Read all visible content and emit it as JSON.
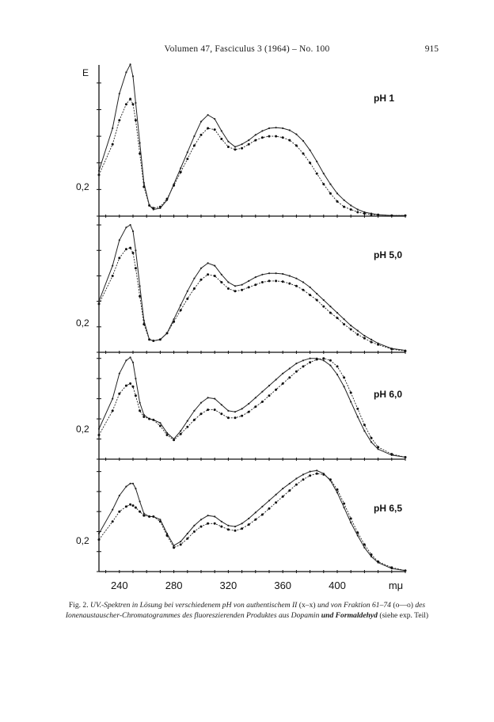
{
  "header": {
    "running_title": "Volumen 47, Fasciculus 3 (1964) – No. 100",
    "page_number": "915"
  },
  "caption": {
    "label": "Fig. 2.",
    "text_1": "UV.-Spektren in Lösung bei verschiedenem pH von authentischem II",
    "text_2": "(x–x)",
    "text_3": "und von Fraktion 61–74",
    "text_4": "(o—o)",
    "text_5": "des Ionenaustauscher-Chromatogrammes des fluoreszierenden Produktes aus Dopamin",
    "text_6": "und Formaldehyd",
    "text_7": "(siehe exp. Teil)"
  },
  "chart_data": {
    "type": "line",
    "y_axis_label": "E",
    "x_unit_label": "mμ",
    "x_tick_labels": [
      "240",
      "280",
      "320",
      "360",
      "400"
    ],
    "xlim": [
      225,
      450
    ],
    "panel_y_tick_label": "0,2",
    "panels": [
      {
        "label": "pH 1",
        "ylim": [
          0,
          1.1
        ],
        "series": [
          {
            "marker": "x",
            "x": [
              225,
              235,
              240,
              245,
              248,
              250,
              252,
              255,
              258,
              262,
              265,
              270,
              275,
              280,
              285,
              290,
              295,
              300,
              305,
              310,
              315,
              320,
              325,
              330,
              335,
              340,
              345,
              350,
              355,
              360,
              365,
              370,
              375,
              380,
              385,
              390,
              395,
              400,
              405,
              410,
              415,
              420,
              425,
              430,
              440,
              450
            ],
            "y": [
              0.34,
              0.66,
              0.92,
              1.08,
              1.14,
              1.05,
              0.85,
              0.55,
              0.25,
              0.08,
              0.05,
              0.06,
              0.12,
              0.24,
              0.36,
              0.48,
              0.6,
              0.71,
              0.76,
              0.73,
              0.64,
              0.56,
              0.52,
              0.54,
              0.57,
              0.61,
              0.64,
              0.66,
              0.665,
              0.66,
              0.645,
              0.615,
              0.565,
              0.495,
              0.41,
              0.32,
              0.24,
              0.17,
              0.12,
              0.08,
              0.05,
              0.03,
              0.02,
              0.01,
              0.005,
              0.005
            ]
          },
          {
            "marker": "o",
            "x": [
              225,
              235,
              240,
              245,
              248,
              250,
              252,
              255,
              258,
              262,
              265,
              270,
              275,
              280,
              285,
              290,
              295,
              300,
              305,
              310,
              315,
              320,
              325,
              330,
              335,
              340,
              345,
              350,
              355,
              360,
              365,
              370,
              375,
              380,
              385,
              390,
              395,
              400,
              405,
              410,
              415,
              420,
              425,
              430,
              440,
              450
            ],
            "y": [
              0.31,
              0.54,
              0.72,
              0.84,
              0.88,
              0.84,
              0.72,
              0.47,
              0.22,
              0.08,
              0.06,
              0.07,
              0.13,
              0.23,
              0.33,
              0.43,
              0.53,
              0.61,
              0.66,
              0.65,
              0.58,
              0.52,
              0.5,
              0.51,
              0.54,
              0.57,
              0.59,
              0.6,
              0.6,
              0.59,
              0.57,
              0.53,
              0.47,
              0.4,
              0.32,
              0.24,
              0.17,
              0.11,
              0.07,
              0.05,
              0.03,
              0.02,
              0.01,
              0.01,
              0.005,
              0.005
            ]
          }
        ]
      },
      {
        "label": "pH 5,0",
        "ylim": [
          0,
          1.1
        ],
        "series": [
          {
            "marker": "x",
            "x": [
              225,
              235,
              240,
              245,
              248,
              250,
              252,
              255,
              258,
              262,
              265,
              270,
              275,
              280,
              285,
              290,
              295,
              300,
              305,
              310,
              315,
              320,
              325,
              330,
              335,
              340,
              345,
              350,
              355,
              360,
              365,
              370,
              375,
              380,
              385,
              390,
              395,
              400,
              405,
              410,
              415,
              420,
              425,
              430,
              440,
              450
            ],
            "y": [
              0.4,
              0.68,
              0.88,
              0.98,
              1.0,
              0.95,
              0.8,
              0.52,
              0.25,
              0.1,
              0.09,
              0.1,
              0.15,
              0.26,
              0.37,
              0.48,
              0.58,
              0.66,
              0.7,
              0.68,
              0.61,
              0.55,
              0.52,
              0.53,
              0.56,
              0.59,
              0.61,
              0.62,
              0.62,
              0.615,
              0.6,
              0.58,
              0.55,
              0.51,
              0.46,
              0.41,
              0.36,
              0.31,
              0.26,
              0.21,
              0.17,
              0.13,
              0.1,
              0.07,
              0.03,
              0.015
            ]
          },
          {
            "marker": "o",
            "x": [
              225,
              235,
              240,
              245,
              248,
              250,
              252,
              255,
              258,
              262,
              265,
              270,
              275,
              280,
              285,
              290,
              295,
              300,
              305,
              310,
              315,
              320,
              325,
              330,
              335,
              340,
              345,
              350,
              355,
              360,
              365,
              370,
              375,
              380,
              385,
              390,
              395,
              400,
              405,
              410,
              415,
              420,
              425,
              430,
              440,
              450
            ],
            "y": [
              0.38,
              0.6,
              0.74,
              0.81,
              0.82,
              0.78,
              0.66,
              0.44,
              0.22,
              0.1,
              0.09,
              0.1,
              0.15,
              0.24,
              0.33,
              0.42,
              0.5,
              0.57,
              0.61,
              0.6,
              0.55,
              0.5,
              0.48,
              0.49,
              0.51,
              0.53,
              0.55,
              0.56,
              0.56,
              0.555,
              0.54,
              0.52,
              0.49,
              0.45,
              0.41,
              0.36,
              0.31,
              0.27,
              0.22,
              0.18,
              0.14,
              0.11,
              0.08,
              0.06,
              0.025,
              0.01
            ]
          }
        ]
      },
      {
        "label": "pH 6,0",
        "ylim": [
          0,
          1.1
        ],
        "series": [
          {
            "marker": "x",
            "x": [
              225,
              235,
              240,
              245,
              248,
              250,
              252,
              255,
              258,
              262,
              265,
              270,
              275,
              280,
              285,
              290,
              295,
              300,
              305,
              310,
              315,
              320,
              325,
              330,
              335,
              340,
              345,
              350,
              355,
              360,
              365,
              370,
              375,
              380,
              385,
              390,
              395,
              400,
              405,
              410,
              415,
              420,
              425,
              430,
              440,
              450
            ],
            "y": [
              0.3,
              0.6,
              0.85,
              0.98,
              1.01,
              0.96,
              0.8,
              0.56,
              0.44,
              0.4,
              0.39,
              0.36,
              0.26,
              0.2,
              0.28,
              0.38,
              0.48,
              0.56,
              0.61,
              0.6,
              0.54,
              0.48,
              0.47,
              0.5,
              0.55,
              0.61,
              0.67,
              0.73,
              0.79,
              0.85,
              0.9,
              0.95,
              0.98,
              1.0,
              1.0,
              0.98,
              0.93,
              0.84,
              0.72,
              0.57,
              0.42,
              0.28,
              0.17,
              0.1,
              0.04,
              0.02
            ]
          },
          {
            "marker": "o",
            "x": [
              225,
              235,
              240,
              245,
              248,
              250,
              252,
              255,
              258,
              262,
              265,
              270,
              275,
              280,
              285,
              290,
              295,
              300,
              305,
              310,
              315,
              320,
              325,
              330,
              335,
              340,
              345,
              350,
              355,
              360,
              365,
              370,
              375,
              380,
              385,
              390,
              395,
              400,
              405,
              410,
              415,
              420,
              425,
              430,
              440,
              450
            ],
            "y": [
              0.24,
              0.48,
              0.65,
              0.73,
              0.75,
              0.72,
              0.63,
              0.48,
              0.42,
              0.4,
              0.39,
              0.33,
              0.24,
              0.19,
              0.25,
              0.32,
              0.39,
              0.45,
              0.49,
              0.49,
              0.45,
              0.41,
              0.41,
              0.43,
              0.47,
              0.52,
              0.57,
              0.63,
              0.69,
              0.75,
              0.81,
              0.87,
              0.92,
              0.96,
              0.99,
              1.0,
              0.98,
              0.92,
              0.81,
              0.66,
              0.5,
              0.34,
              0.21,
              0.12,
              0.05,
              0.02
            ]
          }
        ]
      },
      {
        "label": "pH 6,5",
        "ylim": [
          0,
          1.1
        ],
        "series": [
          {
            "marker": "x",
            "x": [
              225,
              235,
              240,
              245,
              248,
              250,
              252,
              255,
              258,
              262,
              265,
              270,
              275,
              280,
              285,
              290,
              295,
              300,
              305,
              310,
              315,
              320,
              325,
              330,
              335,
              340,
              345,
              350,
              355,
              360,
              365,
              370,
              375,
              380,
              385,
              390,
              395,
              400,
              405,
              410,
              415,
              420,
              425,
              430,
              440,
              450
            ],
            "y": [
              0.38,
              0.62,
              0.76,
              0.85,
              0.88,
              0.88,
              0.83,
              0.7,
              0.58,
              0.55,
              0.55,
              0.52,
              0.38,
              0.26,
              0.3,
              0.38,
              0.46,
              0.52,
              0.56,
              0.55,
              0.5,
              0.46,
              0.45,
              0.48,
              0.53,
              0.59,
              0.65,
              0.71,
              0.77,
              0.83,
              0.88,
              0.93,
              0.97,
              1.0,
              1.01,
              0.98,
              0.91,
              0.79,
              0.64,
              0.49,
              0.36,
              0.24,
              0.15,
              0.09,
              0.03,
              0.01
            ]
          },
          {
            "marker": "o",
            "x": [
              225,
              235,
              240,
              245,
              248,
              250,
              252,
              255,
              258,
              262,
              265,
              270,
              275,
              280,
              285,
              290,
              295,
              300,
              305,
              310,
              315,
              320,
              325,
              330,
              335,
              340,
              345,
              350,
              355,
              360,
              365,
              370,
              375,
              380,
              385,
              390,
              395,
              400,
              405,
              410,
              415,
              420,
              425,
              430,
              440,
              450
            ],
            "y": [
              0.32,
              0.5,
              0.6,
              0.65,
              0.67,
              0.66,
              0.64,
              0.6,
              0.56,
              0.55,
              0.55,
              0.5,
              0.36,
              0.24,
              0.27,
              0.33,
              0.4,
              0.45,
              0.48,
              0.48,
              0.45,
              0.42,
              0.41,
              0.43,
              0.47,
              0.52,
              0.57,
              0.63,
              0.69,
              0.75,
              0.81,
              0.87,
              0.92,
              0.96,
              0.98,
              0.97,
              0.92,
              0.82,
              0.68,
              0.53,
              0.39,
              0.27,
              0.17,
              0.1,
              0.04,
              0.01
            ]
          }
        ]
      }
    ]
  }
}
